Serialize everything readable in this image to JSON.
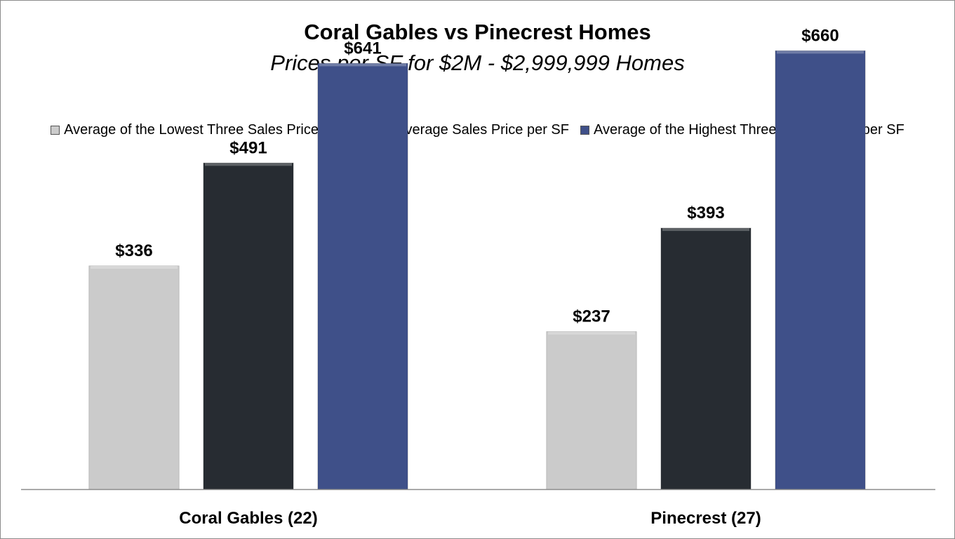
{
  "chart_data": {
    "type": "bar",
    "title": "Coral Gables vs Pinecrest Homes",
    "subtitle": "Prices per SF for $2M - $2,999,999 Homes",
    "categories": [
      "Coral Gables (22)",
      "Pinecrest (27)"
    ],
    "series": [
      {
        "name": "Average of the Lowest Three Sales Prices per SF",
        "values": [
          336,
          237
        ],
        "labels": [
          "$336",
          "$237"
        ],
        "color": "#cbcbcb"
      },
      {
        "name": "Average Sales Price per SF",
        "values": [
          491,
          393
        ],
        "labels": [
          "$491",
          "$393"
        ],
        "color": "#272c32"
      },
      {
        "name": "Average of the Highest Three Sales Prices per SF",
        "values": [
          641,
          660
        ],
        "labels": [
          "$641",
          "$660"
        ],
        "color": "#3f5089"
      }
    ],
    "ylim": [
      0,
      690
    ],
    "grid": false,
    "legend": "top",
    "xlabel": "",
    "ylabel": ""
  }
}
